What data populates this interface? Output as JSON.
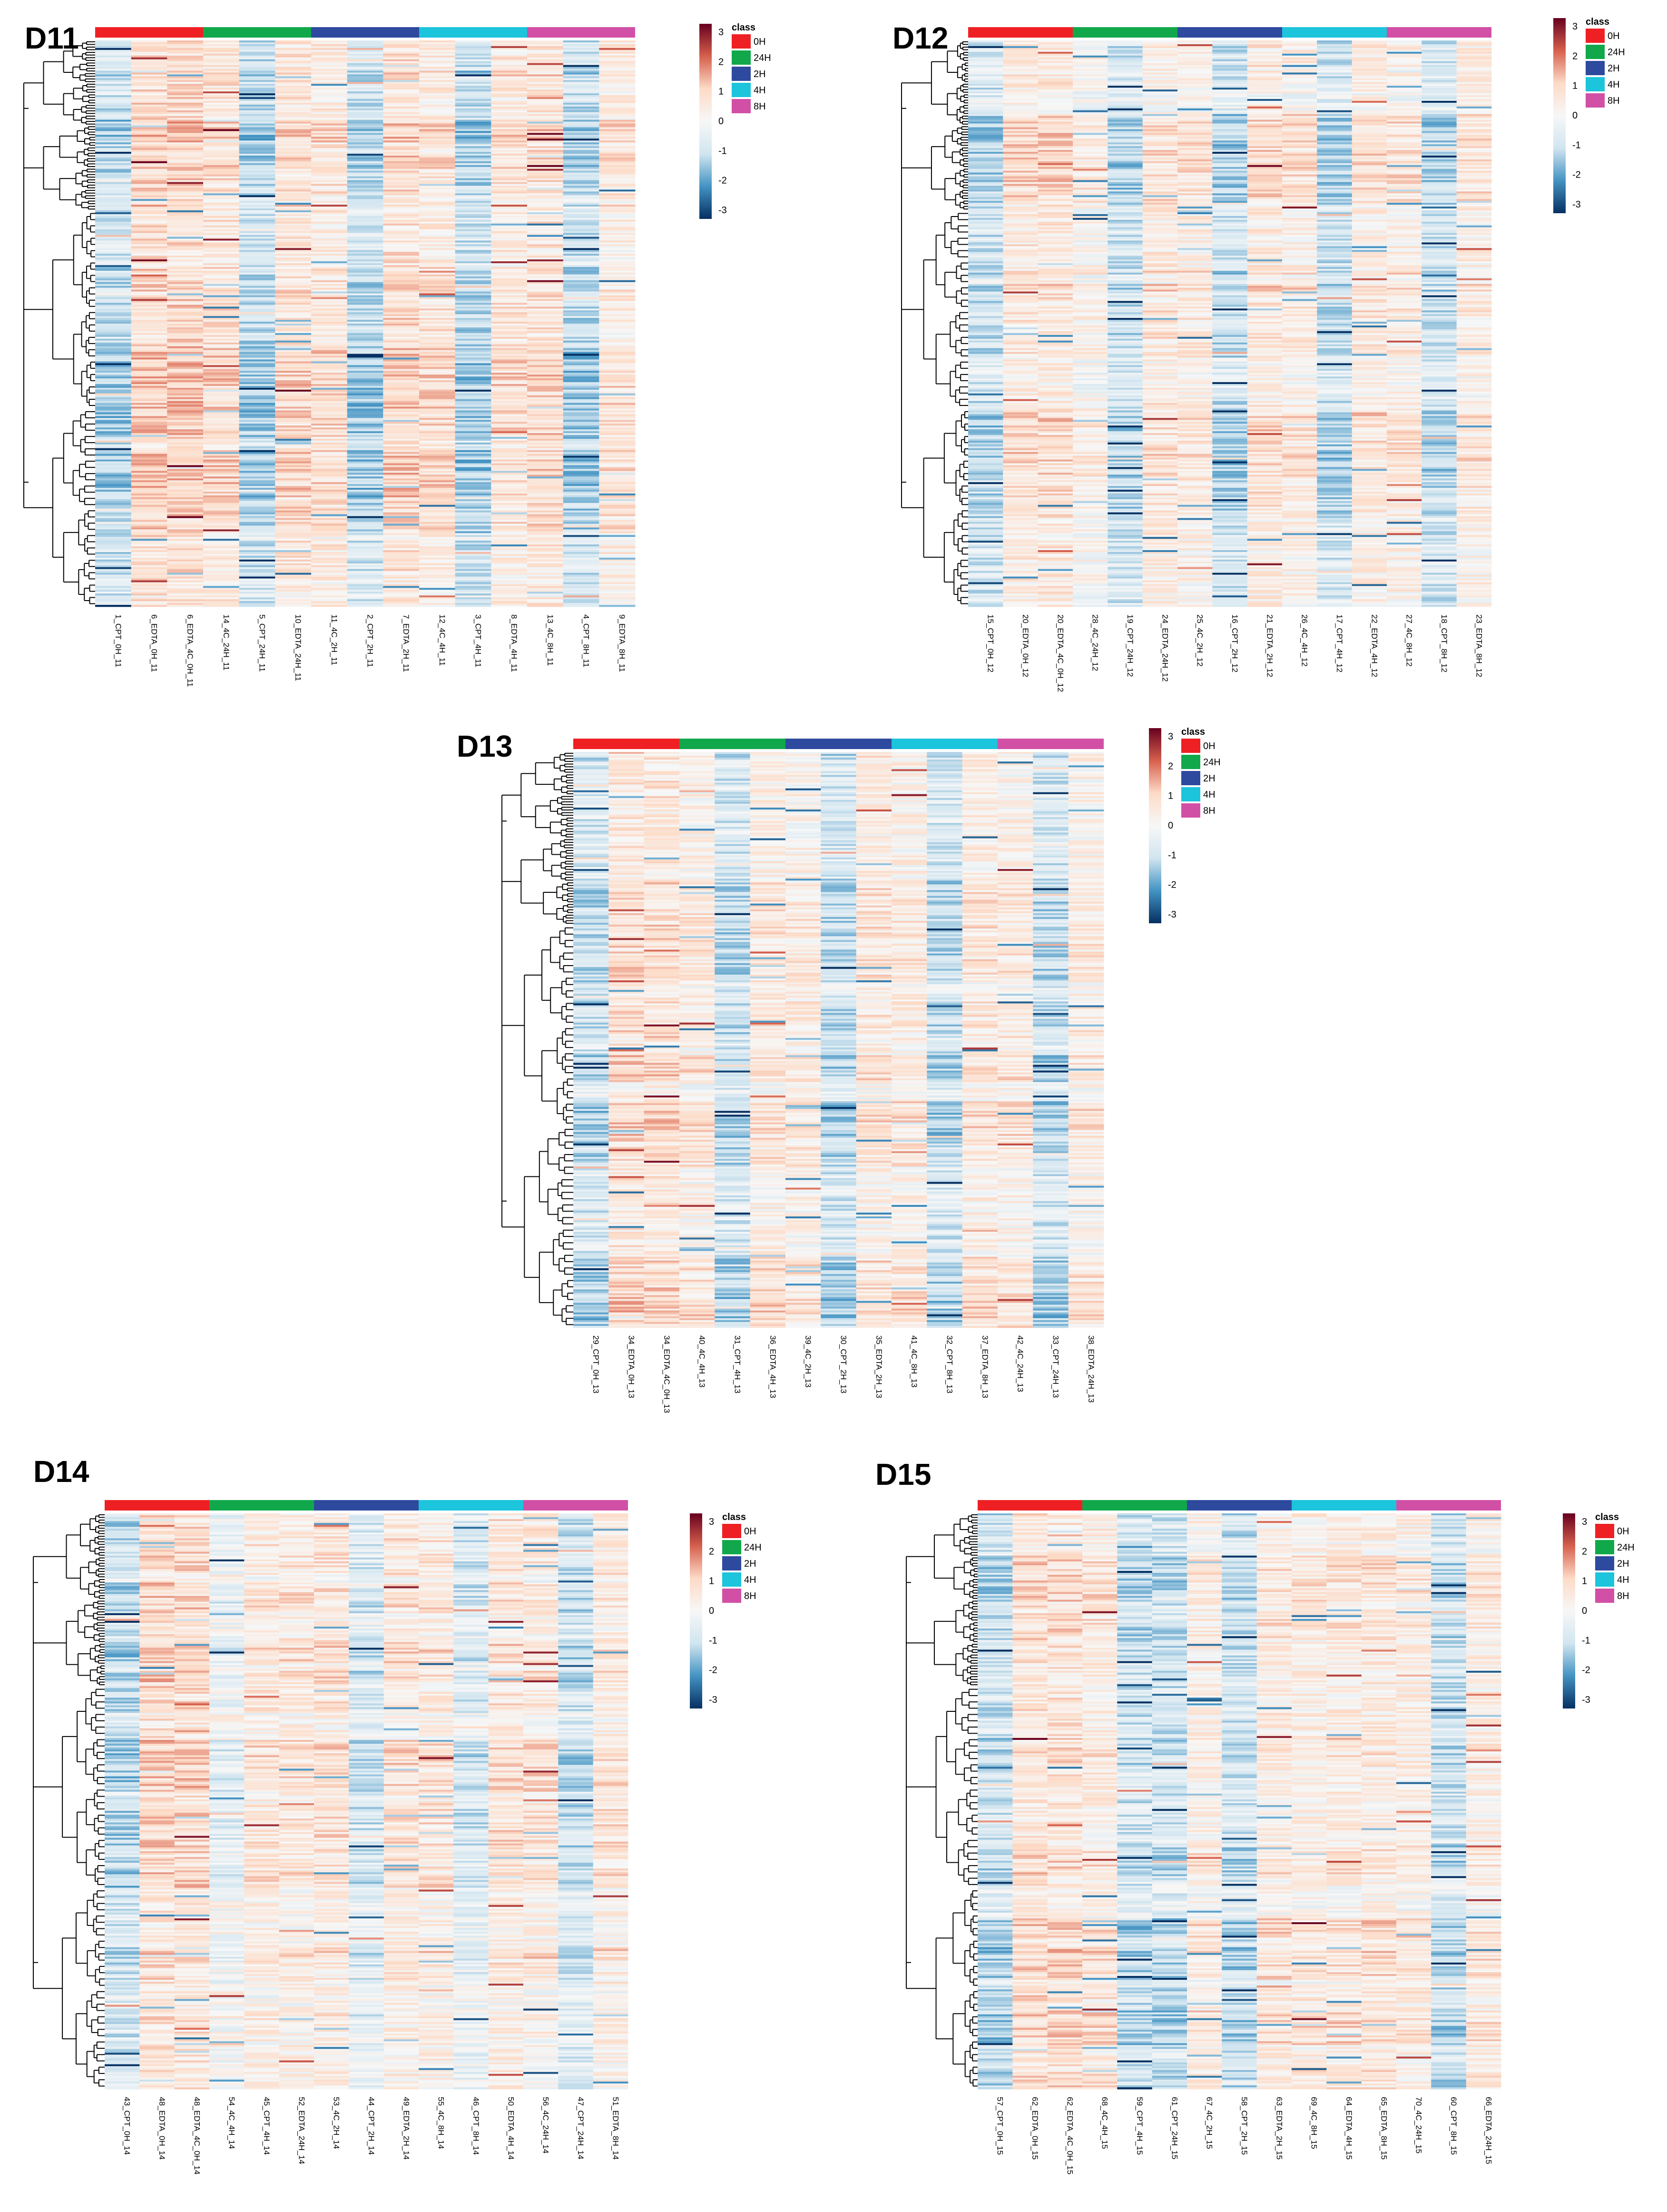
{
  "chart_data": [
    {
      "type": "heatmap",
      "title": "D11",
      "samples": [
        "1_CPT_0H_11",
        "6_EDTA_0H_11",
        "6_EDTA_4C_0H_11",
        "14_4C_24H_11",
        "5_CPT_24H_11",
        "10_EDTA_24H_11",
        "11_4C_2H_11",
        "2_CPT_2H_11",
        "7_EDTA_2H_11",
        "12_4C_4H_11",
        "3_CPT_4H_11",
        "8_EDTA_4H_11",
        "13_4C_8H_11",
        "4_CPT_8H_11",
        "9_EDTA_8H_11"
      ],
      "class_groups": [
        "0H",
        "24H",
        "2H",
        "4H",
        "8H"
      ],
      "scale": {
        "min": -3,
        "max": 3,
        "ticks": [
          3,
          2,
          1,
          0,
          -1,
          -2,
          -3
        ]
      },
      "legend_title": "class"
    },
    {
      "type": "heatmap",
      "title": "D12",
      "samples": [
        "15_CPT_0H_12",
        "20_EDTA_0H_12",
        "20_EDTA_4C_0H_12",
        "28_4C_24H_12",
        "19_CPT_24H_12",
        "24_EDTA_24H_12",
        "25_4C_2H_12",
        "16_CPT_2H_12",
        "21_EDTA_2H_12",
        "26_4C_4H_12",
        "17_CPT_4H_12",
        "22_EDTA_4H_12",
        "27_4C_8H_12",
        "18_CPT_8H_12",
        "23_EDTA_8H_12"
      ],
      "class_groups": [
        "0H",
        "24H",
        "2H",
        "4H",
        "8H"
      ],
      "scale": {
        "min": -3,
        "max": 3,
        "ticks": [
          3,
          2,
          1,
          0,
          -1,
          -2,
          -3
        ]
      },
      "legend_title": "class"
    },
    {
      "type": "heatmap",
      "title": "D13",
      "samples": [
        "29_CPT_0H_13",
        "34_EDTA_0H_13",
        "34_EDTA_4C_0H_13",
        "40_4C_4H_13",
        "31_CPT_4H_13",
        "36_EDTA_4H_13",
        "39_4C_2H_13",
        "30_CPT_2H_13",
        "35_EDTA_2H_13",
        "41_4C_8H_13",
        "32_CPT_8H_13",
        "37_EDTA_8H_13",
        "42_4C_24H_13",
        "33_CPT_24H_13",
        "38_EDTA_24H_13"
      ],
      "class_groups": [
        "0H",
        "24H",
        "2H",
        "4H",
        "8H"
      ],
      "scale": {
        "min": -3,
        "max": 3,
        "ticks": [
          3,
          2,
          1,
          0,
          -1,
          -2,
          -3
        ]
      },
      "legend_title": "class"
    },
    {
      "type": "heatmap",
      "title": "D14",
      "samples": [
        "43_CPT_0H_14",
        "48_EDTA_0H_14",
        "48_EDTA_4C_0H_14",
        "54_4C_4H_14",
        "45_CPT_4H_14",
        "52_EDTA_24H_14",
        "53_4C_2H_14",
        "44_CPT_2H_14",
        "49_EDTA_2H_14",
        "55_4C_8H_14",
        "46_CPT_8H_14",
        "50_EDTA_4H_14",
        "56_4C_24H_14",
        "47_CPT_24H_14",
        "51_EDTA_8H_14"
      ],
      "class_groups": [
        "0H",
        "24H",
        "2H",
        "4H",
        "8H"
      ],
      "scale": {
        "min": -3,
        "max": 3,
        "ticks": [
          3,
          2,
          1,
          0,
          -1,
          -2,
          -3
        ]
      },
      "legend_title": "class"
    },
    {
      "type": "heatmap",
      "title": "D15",
      "samples": [
        "57_CPT_0H_15",
        "62_EDTA_0H_15",
        "62_EDTA_4C_0H_15",
        "68_4C_4H_15",
        "59_CPT_4H_15",
        "61_CPT_24H_15",
        "67_4C_2H_15",
        "58_CPT_2H_15",
        "63_EDTA_2H_15",
        "69_4C_8H_15",
        "64_EDTA_4H_15",
        "65_EDTA_8H_15",
        "70_4C_24H_15",
        "60_CPT_8H_15",
        "66_EDTA_24H_15"
      ],
      "class_groups": [
        "0H",
        "24H",
        "2H",
        "4H",
        "8H"
      ],
      "scale": {
        "min": -3,
        "max": 3,
        "ticks": [
          3,
          2,
          1,
          0,
          -1,
          -2,
          -3
        ]
      },
      "legend_title": "class"
    }
  ],
  "colors": {
    "class": [
      "#ee2024",
      "#11a84b",
      "#2e4a9e",
      "#1cc4dc",
      "#d150a6"
    ],
    "scale_top": "#67001f",
    "scale_high": "#d6604d",
    "scale_mid_pos": "#fddbc7",
    "scale_zero": "#f7f7f7",
    "scale_mid_neg": "#d1e5f0",
    "scale_low": "#4393c3",
    "scale_bottom": "#053061"
  }
}
